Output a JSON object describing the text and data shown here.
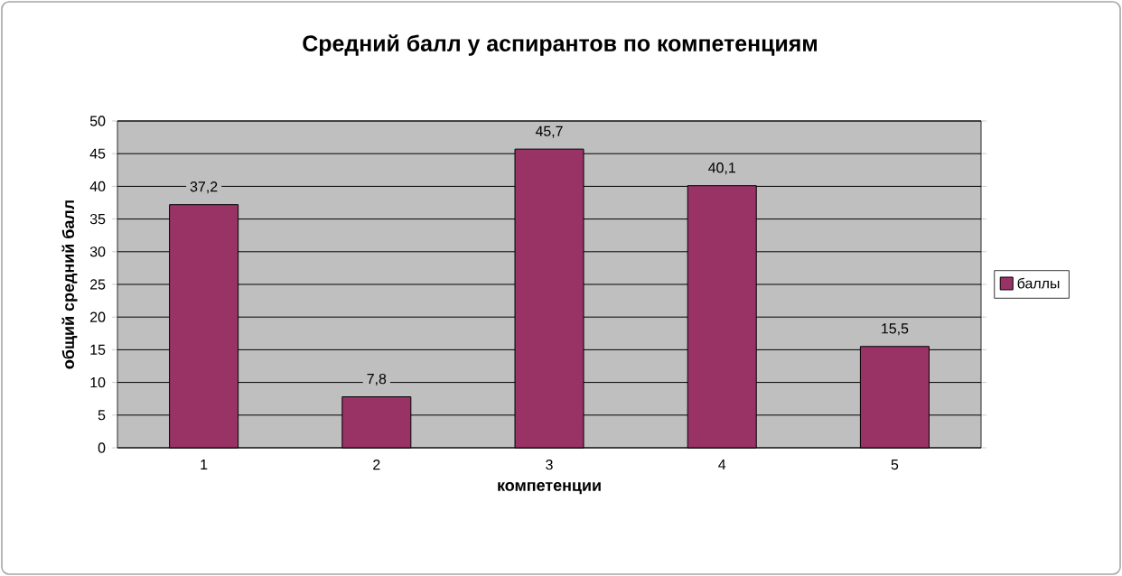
{
  "chart_data": {
    "type": "bar",
    "title": "Средний балл у аспирантов по компетенциям",
    "xlabel": "компетенции",
    "ylabel": "общий средний балл",
    "categories": [
      "1",
      "2",
      "3",
      "4",
      "5"
    ],
    "series": [
      {
        "name": "баллы",
        "color": "#993366",
        "values": [
          37.2,
          7.8,
          45.7,
          40.1,
          15.5
        ],
        "value_labels": [
          "37,2",
          "7,8",
          "45,7",
          "40,1",
          "15,5"
        ]
      }
    ],
    "ylim": [
      0,
      50
    ],
    "yticks": [
      0,
      5,
      10,
      15,
      20,
      25,
      30,
      35,
      40,
      45,
      50
    ],
    "grid": "y",
    "legend": "right"
  }
}
